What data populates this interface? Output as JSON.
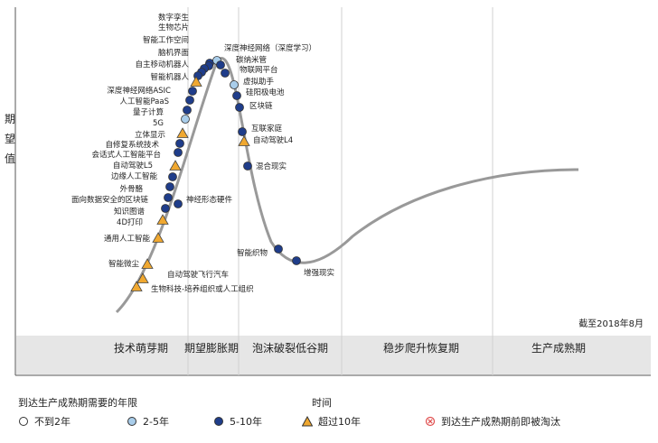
{
  "chart_data": {
    "type": "scatter",
    "ylabel": "期望值",
    "xlabel": "时间",
    "date_note": "截至2018年8月",
    "phases": [
      "技术萌芽期",
      "期望膨胀期",
      "泡沫破裂低谷期",
      "稳步爬升恢复期",
      "生产成熟期"
    ],
    "legend": {
      "title": "到达生产成熟期需要的年限",
      "items": [
        {
          "key": "lt2",
          "label": "不到2年",
          "color": "#ffffff"
        },
        {
          "key": "y2_5",
          "label": "2-5年",
          "color": "#a9cdea"
        },
        {
          "key": "y5_10",
          "label": "5-10年",
          "color": "#1f3d8a"
        },
        {
          "key": "gt10",
          "label": "超过10年",
          "color": "#f0a830"
        },
        {
          "key": "obsolete",
          "label": "到达生产成熟期前即被淘汰",
          "color": "#e05050"
        }
      ]
    },
    "points": [
      {
        "label": "数字孪生",
        "cat": "y5_10"
      },
      {
        "label": "生物芯片",
        "cat": "y5_10"
      },
      {
        "label": "智能工作空间",
        "cat": "y5_10"
      },
      {
        "label": "脑机界面",
        "cat": "y5_10"
      },
      {
        "label": "自主移动机器人",
        "cat": "y5_10"
      },
      {
        "label": "智能机器人",
        "cat": "gt10"
      },
      {
        "label": "深度神经网络ASIC",
        "cat": "y5_10"
      },
      {
        "label": "人工智能PaaS",
        "cat": "y5_10"
      },
      {
        "label": "量子计算",
        "cat": "y5_10"
      },
      {
        "label": "5G",
        "cat": "y2_5"
      },
      {
        "label": "立体显示",
        "cat": "gt10"
      },
      {
        "label": "自修复系统技术",
        "cat": "y5_10"
      },
      {
        "label": "会话式人工智能平台",
        "cat": "y5_10"
      },
      {
        "label": "自动驾驶L5",
        "cat": "gt10"
      },
      {
        "label": "边缘人工智能",
        "cat": "y5_10"
      },
      {
        "label": "外骨骼",
        "cat": "y5_10"
      },
      {
        "label": "面向数据安全的区块链",
        "cat": "y5_10"
      },
      {
        "label": "知识图谱",
        "cat": "y5_10"
      },
      {
        "label": "4D打印",
        "cat": "gt10"
      },
      {
        "label": "通用人工智能",
        "cat": "gt10"
      },
      {
        "label": "智能微尘",
        "cat": "gt10"
      },
      {
        "label": "自动驾驶飞行汽车",
        "cat": "gt10"
      },
      {
        "label": "生物科技-培养组织或人工组织",
        "cat": "gt10"
      },
      {
        "label": "神经形态硬件",
        "cat": "y5_10"
      },
      {
        "label": "深度神经网络（深度学习）",
        "cat": "y2_5"
      },
      {
        "label": "碳纳米管",
        "cat": "y5_10"
      },
      {
        "label": "物联网平台",
        "cat": "y5_10"
      },
      {
        "label": "虚拟助手",
        "cat": "y2_5"
      },
      {
        "label": "硅阳极电池",
        "cat": "y5_10"
      },
      {
        "label": "区块链",
        "cat": "y5_10"
      },
      {
        "label": "互联家庭",
        "cat": "y5_10"
      },
      {
        "label": "自动驾驶L4",
        "cat": "gt10"
      },
      {
        "label": "混合现实",
        "cat": "y5_10"
      },
      {
        "label": "智能织物",
        "cat": "y5_10"
      },
      {
        "label": "增强现实",
        "cat": "y5_10"
      }
    ]
  }
}
